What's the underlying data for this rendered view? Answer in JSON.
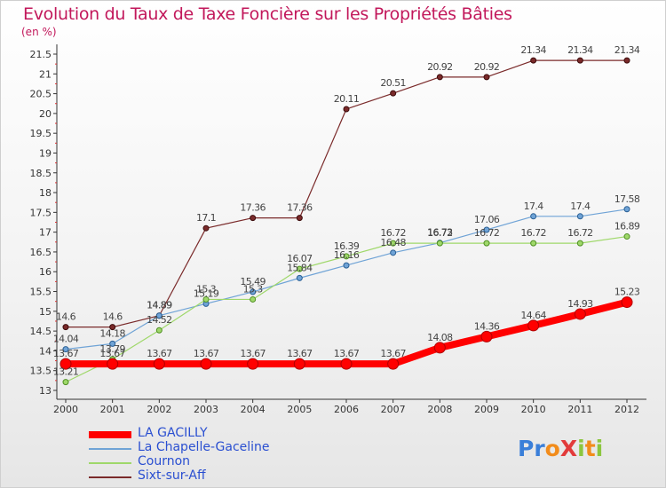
{
  "title": "Evolution du Taux de Taxe Foncière sur les Propriétés Bâties",
  "unit_label": "(en %)",
  "logo": {
    "text": "ProXiti",
    "letters": [
      "P",
      "r",
      "o",
      "X",
      "i",
      "t",
      "i"
    ],
    "colors": [
      "#3a7fd9",
      "#3a7fd9",
      "#f28c1b",
      "#e23b3b",
      "#8cc63f",
      "#f28c1b",
      "#8cc63f"
    ]
  },
  "chart_data": {
    "type": "line",
    "title": "Evolution du Taux de Taxe Foncière sur les Propriétés Bâties",
    "ylabel": "(en %)",
    "x": [
      "2000",
      "2001",
      "2002",
      "2003",
      "2004",
      "2005",
      "2006",
      "2007",
      "2008",
      "2009",
      "2010",
      "2011",
      "2012"
    ],
    "ylim": [
      13,
      21.5
    ],
    "yticks": [
      "13",
      "13.5",
      "14",
      "14.5",
      "15",
      "15.5",
      "16",
      "16.5",
      "17",
      "17.5",
      "18",
      "18.5",
      "19",
      "19.5",
      "20",
      "20.5",
      "21",
      "21.5"
    ],
    "grid": false,
    "legend_position": "bottom-left",
    "series": [
      {
        "name": "Sixt-sur-Aff",
        "color": "#7a2a2a",
        "values": [
          14.6,
          14.6,
          14.89,
          17.1,
          17.36,
          17.36,
          20.11,
          20.51,
          20.92,
          20.92,
          21.34,
          21.34,
          21.34
        ],
        "labels": [
          "14.6",
          "14.6",
          "14.89",
          "17.1",
          "17.36",
          "17.36",
          "20.11",
          "20.51",
          "20.92",
          "20.92",
          "21.34",
          "21.34",
          "21.34"
        ]
      },
      {
        "name": "La Chapelle-Gaceline",
        "color": "#6fa3d6",
        "values": [
          14.04,
          14.18,
          14.89,
          15.19,
          15.49,
          15.84,
          16.16,
          16.48,
          16.73,
          17.06,
          17.4,
          17.4,
          17.58
        ],
        "labels": [
          "14.04",
          "14.18",
          "14.89",
          "15.19",
          "15.49",
          "15.84",
          "16.16",
          "16.48",
          "16.73",
          "17.06",
          "17.4",
          "17.4",
          "17.58"
        ]
      },
      {
        "name": "Cournon",
        "color": "#9fd86a",
        "values": [
          13.21,
          13.79,
          14.52,
          15.3,
          15.3,
          16.07,
          16.39,
          16.72,
          16.72,
          16.72,
          16.72,
          16.72,
          16.89
        ],
        "labels": [
          "13.21",
          "13.79",
          "14.52",
          "15.3",
          "15.3",
          "16.07",
          "16.39",
          "16.72",
          "16.72",
          "16.72",
          "16.72",
          "16.72",
          "16.89"
        ]
      },
      {
        "name": "LA GACILLY",
        "color": "#ff0000",
        "values": [
          13.67,
          13.67,
          13.67,
          13.67,
          13.67,
          13.67,
          13.67,
          13.67,
          14.08,
          14.36,
          14.64,
          14.93,
          15.23
        ],
        "labels": [
          "13.67",
          "13.67",
          "13.67",
          "13.67",
          "13.67",
          "13.67",
          "13.67",
          "13.67",
          "14.08",
          "14.36",
          "14.64",
          "14.93",
          "15.23"
        ]
      }
    ],
    "legend": [
      "LA GACILLY",
      "La Chapelle-Gaceline",
      "Cournon",
      "Sixt-sur-Aff"
    ]
  }
}
